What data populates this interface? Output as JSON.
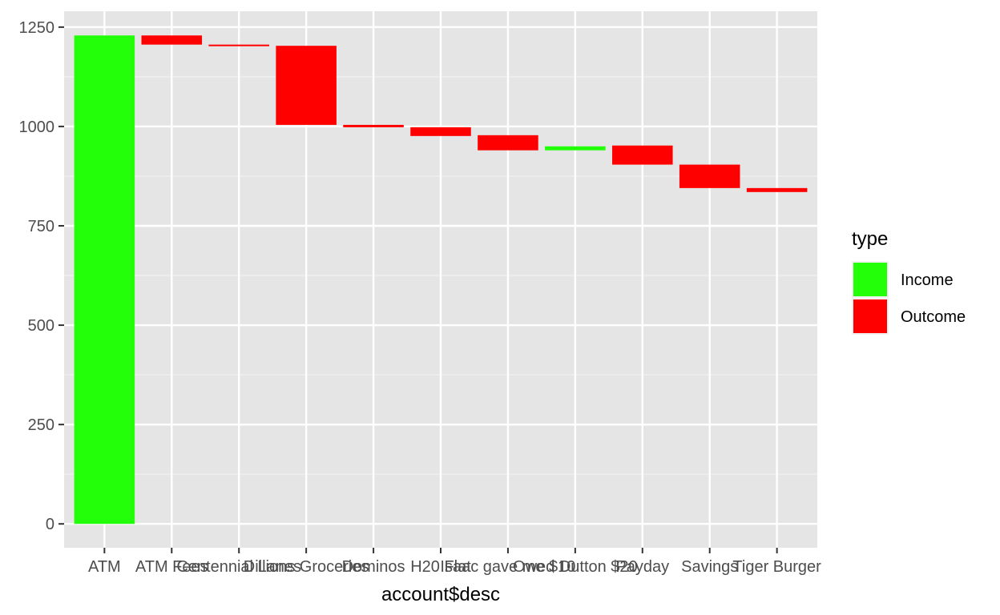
{
  "chart_data": {
    "type": "bar",
    "subtype": "waterfall",
    "xlabel": "account$desc",
    "ylabel": "",
    "categories": [
      "ATM",
      "ATM Fees",
      "Centennial Lanes",
      "Dillions Groceries",
      "Dominos",
      "H20 Flat",
      "Isaac gave me $10",
      "Owed Dutton $20",
      "Payday",
      "Savings",
      "Tiger Burger"
    ],
    "series": [
      {
        "category": "ATM",
        "type": "Income",
        "start": 0,
        "end": 1229
      },
      {
        "category": "ATM Fees",
        "type": "Outcome",
        "start": 1229,
        "end": 1206
      },
      {
        "category": "Centennial Lanes",
        "type": "Outcome",
        "start": 1206,
        "end": 1203
      },
      {
        "category": "Dillions Groceries",
        "type": "Outcome",
        "start": 1203,
        "end": 1004
      },
      {
        "category": "Dominos",
        "type": "Outcome",
        "start": 1004,
        "end": 998
      },
      {
        "category": "H20 Flat",
        "type": "Outcome",
        "start": 998,
        "end": 976
      },
      {
        "category": "Isaac gave me $10",
        "type": "Outcome",
        "start": 978,
        "end": 940
      },
      {
        "category": "Owed Dutton $20",
        "type": "Income",
        "start": 940,
        "end": 950
      },
      {
        "category": "Payday",
        "type": "Outcome",
        "start": 952,
        "end": 904
      },
      {
        "category": "Savings",
        "type": "Outcome",
        "start": 904,
        "end": 845
      },
      {
        "category": "Tiger Burger",
        "type": "Outcome",
        "start": 845,
        "end": 835
      }
    ],
    "yticks": [
      0,
      250,
      500,
      750,
      1000,
      1250
    ],
    "ylim": [
      -60,
      1290
    ],
    "grid": true,
    "legend": {
      "title": "type",
      "position": "right",
      "entries": [
        {
          "label": "Income",
          "color": "#22ff09"
        },
        {
          "label": "Outcome",
          "color": "#ff0000"
        }
      ]
    },
    "colors": {
      "Income": "#22ff09",
      "Outcome": "#ff0000",
      "panel_background": "#e5e5e5",
      "grid": "#ffffff"
    }
  }
}
